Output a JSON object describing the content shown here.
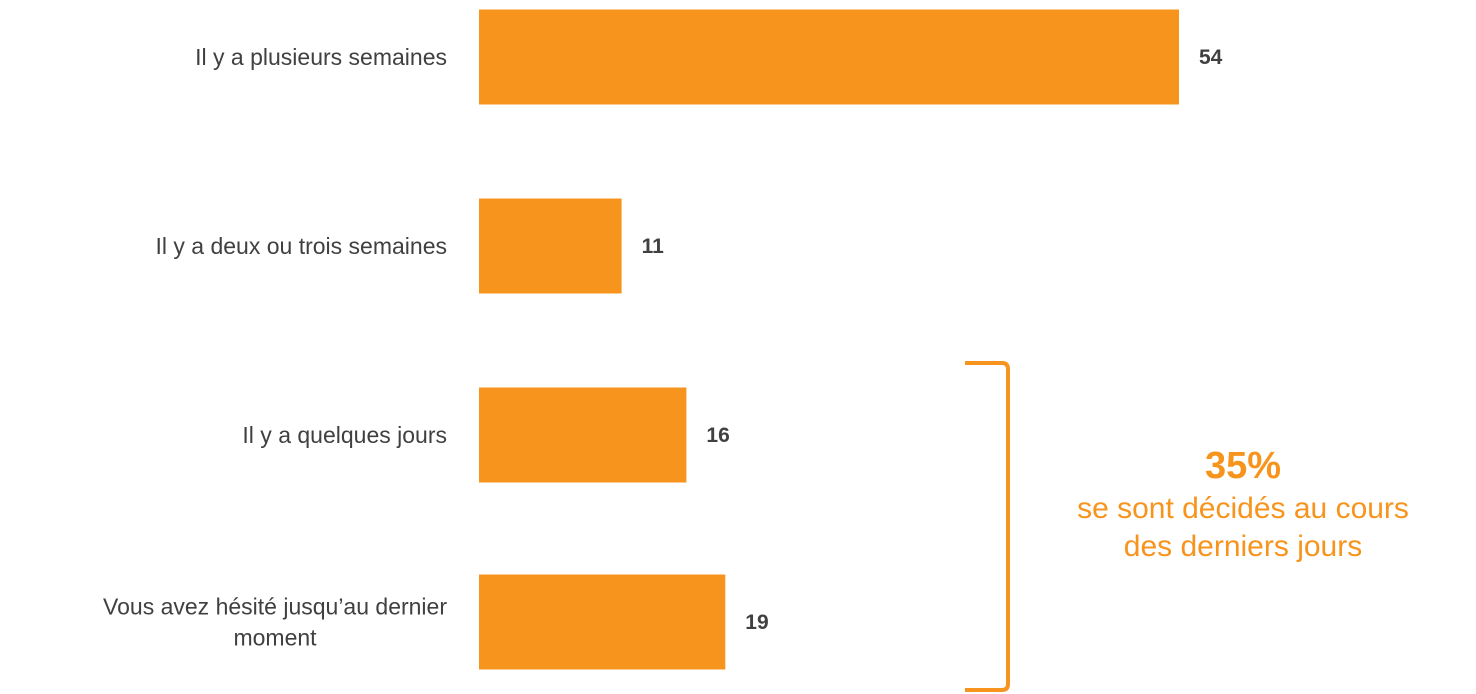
{
  "chart_data": {
    "type": "bar",
    "orientation": "horizontal",
    "categories": [
      [
        "Il y a plusieurs semaines"
      ],
      [
        "Il y a deux ou trois semaines"
      ],
      [
        "Il y a quelques jours"
      ],
      [
        "Vous avez hésité jusqu’au dernier",
        "moment"
      ]
    ],
    "values": [
      54,
      11,
      16,
      19
    ],
    "title": "",
    "xlabel": "",
    "ylabel": "",
    "xlim": [
      0,
      54
    ],
    "grid": false,
    "bar_color": "#F7941D",
    "label_color": "#404040",
    "annotation": {
      "bracket_spans_categories": [
        2,
        3
      ],
      "bracket_color": "#F7941D",
      "big_text": "35%",
      "text_lines": [
        "se sont décidés au cours",
        "des derniers jours"
      ]
    }
  }
}
